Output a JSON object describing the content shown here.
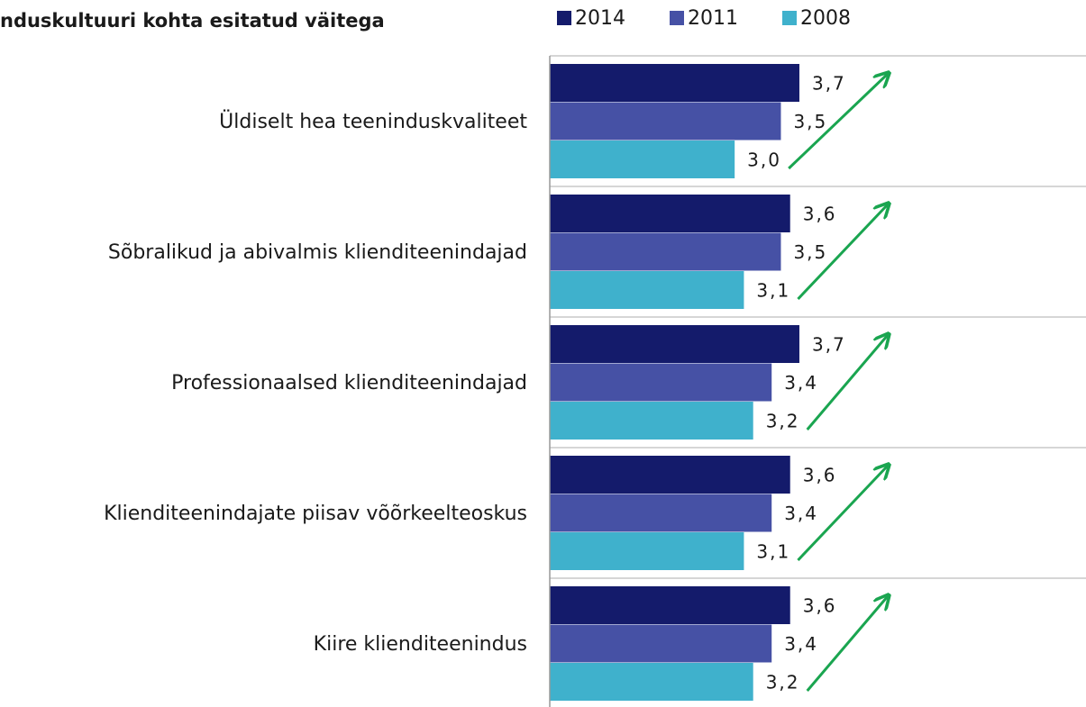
{
  "chart_data": {
    "type": "bar",
    "orientation": "horizontal",
    "title": "nduskultuuri kohta esitatud väitega",
    "categories": [
      "Üldiselt hea teeninduskvaliteet",
      "Sõbralikud ja abivalmis klienditeenindajad",
      "Professionaalsed klienditeenindajad",
      "Klienditeenindajate piisav võõrkeelteoskus",
      "Kiire klienditeenindus"
    ],
    "series": [
      {
        "name": "2014",
        "color": "#141b6b",
        "values": [
          3.7,
          3.6,
          3.7,
          3.6,
          3.6
        ],
        "value_labels": [
          "3,7",
          "3,6",
          "3,7",
          "3,6",
          "3,6"
        ]
      },
      {
        "name": "2011",
        "color": "#4651a5",
        "values": [
          3.5,
          3.5,
          3.4,
          3.4,
          3.4
        ],
        "value_labels": [
          "3,5",
          "3,5",
          "3,4",
          "3,4",
          "3,4"
        ]
      },
      {
        "name": "2008",
        "color": "#3fb1cc",
        "values": [
          3.0,
          3.1,
          3.2,
          3.1,
          3.2
        ],
        "value_labels": [
          "3,0",
          "3,1",
          "3,2",
          "3,1",
          "3,2"
        ]
      }
    ],
    "xlim": [
      1,
      6.8
    ],
    "legend": "top"
  }
}
